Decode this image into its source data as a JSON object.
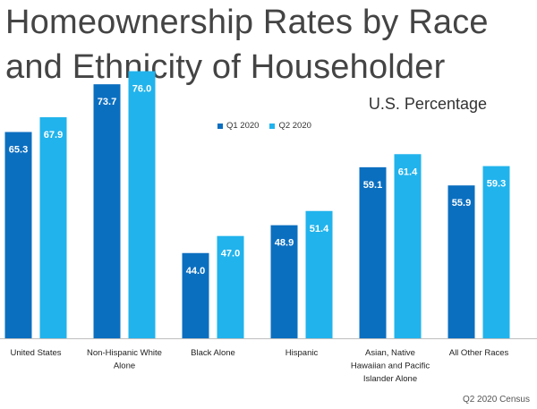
{
  "title": {
    "line1": "Homeownership Rates by Race",
    "line2": "and Ethnicity of Householder"
  },
  "subtitle": "U.S. Percentage",
  "source": "Q2 2020 Census",
  "colors": {
    "q1": "#0b6fc0",
    "q2": "#21b3ec",
    "axis": "#bfbfbf"
  },
  "chart_data": {
    "type": "bar",
    "title": "Homeownership Rates by Race and Ethnicity of Householder",
    "subtitle": "U.S. Percentage",
    "categories": [
      "United States",
      "Non-Hispanic White Alone",
      "Black Alone",
      "Hispanic",
      "Asian, Native Hawaiian and Pacific Islander Alone",
      "All Other Races"
    ],
    "category_label_lines": [
      [
        "United States"
      ],
      [
        "Non-Hispanic White",
        "Alone"
      ],
      [
        "Black Alone"
      ],
      [
        "Hispanic"
      ],
      [
        "Asian, Native",
        "Hawaiian and Pacific",
        "Islander Alone"
      ],
      [
        "All Other Races"
      ]
    ],
    "series": [
      {
        "name": "Q1 2020",
        "values": [
          65.3,
          73.7,
          44.0,
          48.9,
          59.1,
          55.9
        ]
      },
      {
        "name": "Q2 2020",
        "values": [
          67.9,
          76.0,
          47.0,
          51.4,
          61.4,
          59.3
        ]
      }
    ],
    "value_labels": [
      [
        "65.3",
        "73.7",
        "44.0",
        "48.9",
        "59.1",
        "55.9"
      ],
      [
        "67.9",
        "76.0",
        "47.0",
        "51.4",
        "61.4",
        "59.3"
      ]
    ],
    "xlabel": "",
    "ylabel": "",
    "ylim": [
      29,
      81
    ],
    "legend_position": "top-center",
    "grid": false
  }
}
